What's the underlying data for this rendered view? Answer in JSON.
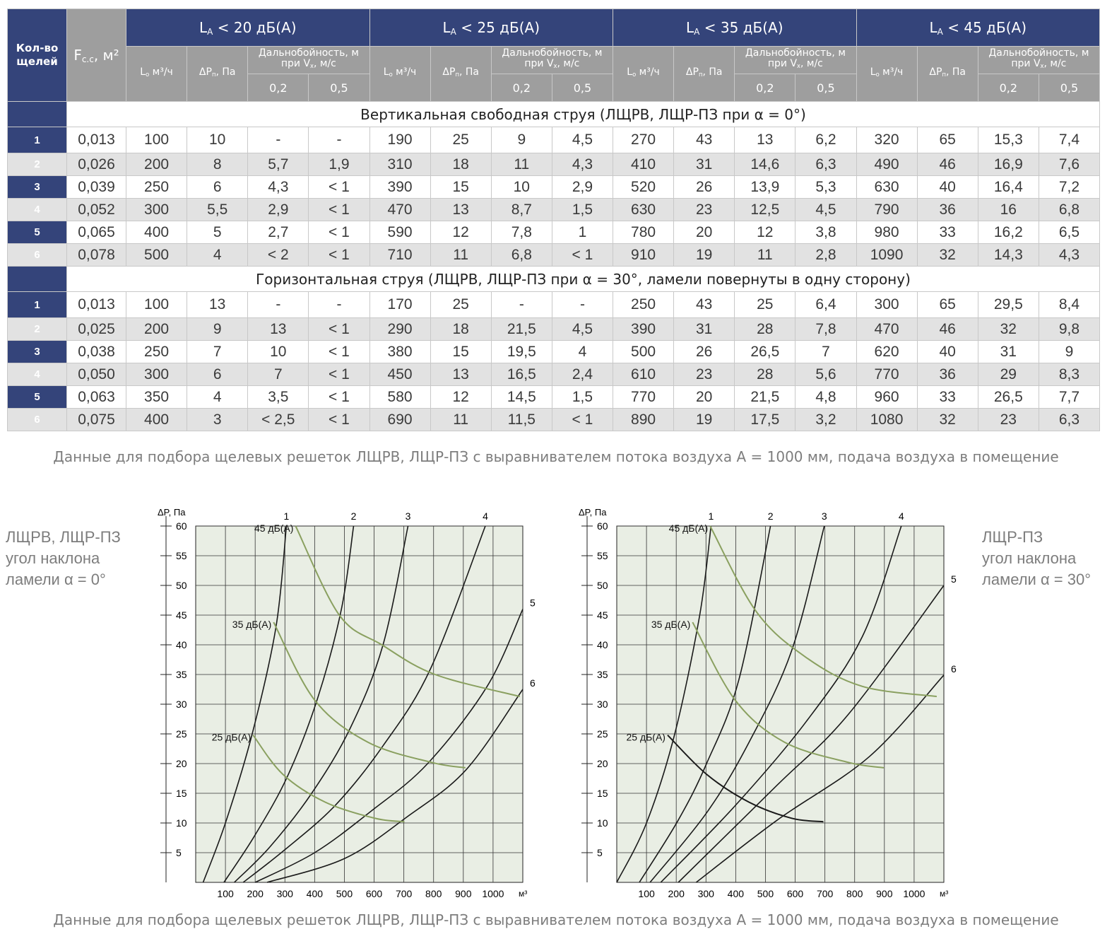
{
  "table": {
    "columns": {
      "count": "Кол-во щелей",
      "area": {
        "text": "F",
        "sub": "с.с",
        "tail": ", м²"
      },
      "level": {
        "text": "L",
        "sub": "A"
      },
      "groups": [
        "< 20 дБ(А)",
        "< 25 дБ(А)",
        "< 35 дБ(А)",
        "< 45 дБ(А)"
      ],
      "flow": {
        "text": "L",
        "sub": "о",
        "tail": " м³/ч"
      },
      "pressure": {
        "text": "ΔP",
        "sub": "п",
        "tail": ", Па"
      },
      "throw": {
        "text": "Дальнобойность, м при V",
        "sub": "х",
        "tail": ", м/с"
      },
      "speeds": [
        "0,2",
        "0,5"
      ]
    },
    "sections": [
      {
        "title": "Вертикальная свободная струя (ЛЩРВ, ЛЩР-ПЗ при α = 0°)",
        "rows": [
          [
            "1",
            "0,013",
            "100",
            "10",
            "-",
            "-",
            "190",
            "25",
            "9",
            "4,5",
            "270",
            "43",
            "13",
            "6,2",
            "320",
            "65",
            "15,3",
            "7,4"
          ],
          [
            "2",
            "0,026",
            "200",
            "8",
            "5,7",
            "1,9",
            "310",
            "18",
            "11",
            "4,3",
            "410",
            "31",
            "14,6",
            "6,3",
            "490",
            "46",
            "16,9",
            "7,6"
          ],
          [
            "3",
            "0,039",
            "250",
            "6",
            "4,3",
            "< 1",
            "390",
            "15",
            "10",
            "2,9",
            "520",
            "26",
            "13,9",
            "5,3",
            "630",
            "40",
            "16,4",
            "7,2"
          ],
          [
            "4",
            "0,052",
            "300",
            "5,5",
            "2,9",
            "< 1",
            "470",
            "13",
            "8,7",
            "1,5",
            "630",
            "23",
            "12,5",
            "4,5",
            "790",
            "36",
            "16",
            "6,8"
          ],
          [
            "5",
            "0,065",
            "400",
            "5",
            "2,7",
            "< 1",
            "590",
            "12",
            "7,8",
            "1",
            "780",
            "20",
            "12",
            "3,8",
            "980",
            "33",
            "16,2",
            "6,5"
          ],
          [
            "6",
            "0,078",
            "500",
            "4",
            "< 2",
            "< 1",
            "710",
            "11",
            "6,8",
            "< 1",
            "910",
            "19",
            "11",
            "2,8",
            "1090",
            "32",
            "14,3",
            "4,3"
          ]
        ]
      },
      {
        "title": "Горизонтальная  струя (ЛЩРВ, ЛЩР-ПЗ при  α = 30°, ламели повернуты в одну сторону)",
        "rows": [
          [
            "1",
            "0,013",
            "100",
            "13",
            "-",
            "-",
            "170",
            "25",
            "-",
            "-",
            "250",
            "43",
            "25",
            "6,4",
            "300",
            "65",
            "29,5",
            "8,4"
          ],
          [
            "2",
            "0,025",
            "200",
            "9",
            "13",
            "< 1",
            "290",
            "18",
            "21,5",
            "4,5",
            "390",
            "31",
            "28",
            "7,8",
            "470",
            "46",
            "32",
            "9,8"
          ],
          [
            "3",
            "0,038",
            "250",
            "7",
            "10",
            "< 1",
            "380",
            "15",
            "19,5",
            "4",
            "500",
            "26",
            "26,5",
            "7",
            "620",
            "40",
            "31",
            "9"
          ],
          [
            "4",
            "0,050",
            "300",
            "6",
            "7",
            "< 1",
            "450",
            "13",
            "16,5",
            "2,4",
            "610",
            "23",
            "28",
            "5,6",
            "770",
            "36",
            "29",
            "8,3"
          ],
          [
            "5",
            "0,063",
            "350",
            "4",
            "3,5",
            "< 1",
            "580",
            "12",
            "14,5",
            "1,5",
            "770",
            "20",
            "21,5",
            "4,8",
            "960",
            "33",
            "26,5",
            "7,7"
          ],
          [
            "6",
            "0,075",
            "400",
            "3",
            "< 2,5",
            "< 1",
            "690",
            "11",
            "11,5",
            "< 1",
            "890",
            "19",
            "17,5",
            "3,2",
            "1080",
            "32",
            "23",
            "6,3"
          ]
        ]
      }
    ]
  },
  "caption_table": "Данные для подбора щелевых решеток ЛЩРВ, ЛЩР-ПЗ с выравнивателем потока воздуха А = 1000 мм, подача воздуха в помещение",
  "chart_data": [
    {
      "type": "line",
      "ylabel": "ΔP, Па",
      "xlabel": "м³",
      "xlim": [
        0,
        1100
      ],
      "ylim": [
        0,
        60
      ],
      "xticks": [
        100,
        200,
        300,
        400,
        500,
        600,
        700,
        800,
        900,
        1000
      ],
      "yticks": [
        5,
        10,
        15,
        20,
        25,
        30,
        35,
        40,
        45,
        50,
        55,
        60
      ],
      "grid": true,
      "background": "#e9eee4",
      "note": [
        "ЛЩРВ, ЛЩР-ПЗ",
        "угол наклона",
        "ламели α = 0°"
      ],
      "series": [
        {
          "name": "1",
          "color": "#1a1a1a",
          "x": [
            25,
            100,
            190,
            270,
            305
          ],
          "values": [
            0,
            10,
            25,
            43,
            60
          ]
        },
        {
          "name": "2",
          "color": "#1a1a1a",
          "x": [
            95,
            200,
            310,
            410,
            490,
            531
          ],
          "values": [
            0,
            8,
            18,
            31,
            46,
            60
          ]
        },
        {
          "name": "3",
          "color": "#1a1a1a",
          "x": [
            130,
            250,
            390,
            520,
            630,
            714
          ],
          "values": [
            0,
            6,
            15,
            26,
            40,
            60
          ]
        },
        {
          "name": "4",
          "color": "#1a1a1a",
          "x": [
            160,
            300,
            470,
            630,
            790,
            974
          ],
          "values": [
            0,
            5.5,
            13,
            23,
            36,
            60
          ]
        },
        {
          "name": "5",
          "color": "#1a1a1a",
          "x": [
            200,
            400,
            590,
            780,
            980,
            1100
          ],
          "values": [
            0,
            5,
            12,
            20,
            33,
            46
          ]
        },
        {
          "name": "6",
          "color": "#1a1a1a",
          "x": [
            240,
            500,
            710,
            910,
            1100
          ],
          "values": [
            0,
            4,
            11,
            19,
            32.5
          ]
        }
      ],
      "noise_series": [
        {
          "name": "45 дБ(А)",
          "color": "#8aa060",
          "x": [
            336,
            483,
            626,
            805,
            1090
          ],
          "values": [
            60,
            45,
            40,
            35,
            31.3
          ]
        },
        {
          "name": "35 дБ(А)",
          "color": "#8aa060",
          "x": [
            262,
            400,
            579,
            793,
            907
          ],
          "values": [
            43.8,
            30.7,
            23.6,
            20.2,
            19.3
          ]
        },
        {
          "name": "25 дБ(А)",
          "color": "#8aa060",
          "x": [
            193,
            293,
            436,
            602,
            702
          ],
          "values": [
            24.8,
            18.2,
            13.5,
            10.8,
            10.2
          ]
        }
      ]
    },
    {
      "type": "line",
      "ylabel": "ΔP, Па",
      "xlabel": "м³",
      "xlim": [
        0,
        1100
      ],
      "ylim": [
        0,
        60
      ],
      "xticks": [
        100,
        200,
        300,
        400,
        500,
        600,
        700,
        800,
        900,
        1000
      ],
      "yticks": [
        5,
        10,
        15,
        20,
        25,
        30,
        35,
        40,
        45,
        50,
        55,
        60
      ],
      "grid": true,
      "background": "#e9eee4",
      "note": [
        "ЛЩР-ПЗ",
        "угол наклона",
        "ламели α = 30°"
      ],
      "series": [
        {
          "name": "1",
          "color": "#1a1a1a",
          "x": [
            0,
            100,
            195,
            279,
            317
          ],
          "values": [
            0,
            10,
            25,
            45,
            60
          ]
        },
        {
          "name": "2",
          "color": "#1a1a1a",
          "x": [
            76,
            207,
            302,
            410,
            517
          ],
          "values": [
            0,
            10.5,
            20,
            34,
            60
          ]
        },
        {
          "name": "3",
          "color": "#1a1a1a",
          "x": [
            112,
            302,
            445,
            588,
            698
          ],
          "values": [
            0,
            11.7,
            23.6,
            39,
            60
          ]
        },
        {
          "name": "4",
          "color": "#1a1a1a",
          "x": [
            148,
            398,
            636,
            826,
            957
          ],
          "values": [
            0,
            12.9,
            27,
            41.4,
            60
          ]
        },
        {
          "name": "5",
          "color": "#1a1a1a",
          "x": [
            207,
            540,
            779,
            1100
          ],
          "values": [
            0,
            16.4,
            28.3,
            50
          ]
        },
        {
          "name": "6",
          "color": "#1a1a1a",
          "x": [
            267,
            540,
            850,
            1100
          ],
          "values": [
            0,
            10.5,
            21.2,
            34.9
          ]
        }
      ],
      "noise_series": [
        {
          "name": "45 дБ(А)",
          "color": "#8aa060",
          "x": [
            314,
            469,
            636,
            826,
            1076
          ],
          "values": [
            60,
            45.6,
            37.9,
            33,
            31.3
          ]
        },
        {
          "name": "35 дБ(А)",
          "color": "#8aa060",
          "x": [
            255,
            398,
            564,
            779,
            898
          ],
          "values": [
            43.8,
            30.7,
            23.6,
            20.2,
            19.3
          ]
        },
        {
          "name": "25 дБ(А)",
          "color": "#1a1a1a",
          "x": [
            171,
            302,
            445,
            588,
            695
          ],
          "values": [
            24.8,
            18.2,
            13.5,
            10.8,
            10.2
          ]
        }
      ]
    }
  ],
  "caption_charts": "Данные для подбора щелевых решеток ЛЩРВ, ЛЩР-ПЗ с выравнивателем потока воздуха А = 1000 мм, подача воздуха в помещение"
}
